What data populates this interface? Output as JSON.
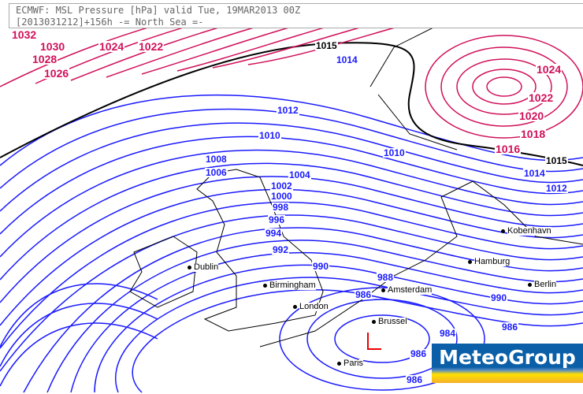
{
  "header": {
    "line1": "ECMWF: MSL Pressure [hPa] valid Tue, 19MAR2013 00Z",
    "line2": "[2013031212]+156h -= North Sea =-"
  },
  "colors": {
    "isobar_low": "#1a1aff",
    "isobar_high": "#d0105a",
    "isobar_1015": "#000000",
    "logo_blue": "#0a5fa8",
    "logo_yellow": "#ffe000"
  },
  "isobar_labels": {
    "red": [
      "1032",
      "1030",
      "1028",
      "1026",
      "1024",
      "1022",
      "1024",
      "1022",
      "1020",
      "1018",
      "1016"
    ],
    "black": [
      "1015",
      "1015"
    ],
    "blue": [
      "1014",
      "1012",
      "1010",
      "1010",
      "1008",
      "1006",
      "1004",
      "1002",
      "1000",
      "998",
      "996",
      "994",
      "992",
      "990",
      "988",
      "986",
      "984",
      "986",
      "990",
      "1014",
      "1012",
      "986",
      "986"
    ]
  },
  "cities": [
    "Dublin",
    "Birmingham",
    "London",
    "Amsterdam",
    "Brussel",
    "Paris",
    "Hamburg",
    "Kobenhavn",
    "Berlin"
  ],
  "low_center_symbol": "L",
  "logo": {
    "text": "MeteoGroup"
  }
}
